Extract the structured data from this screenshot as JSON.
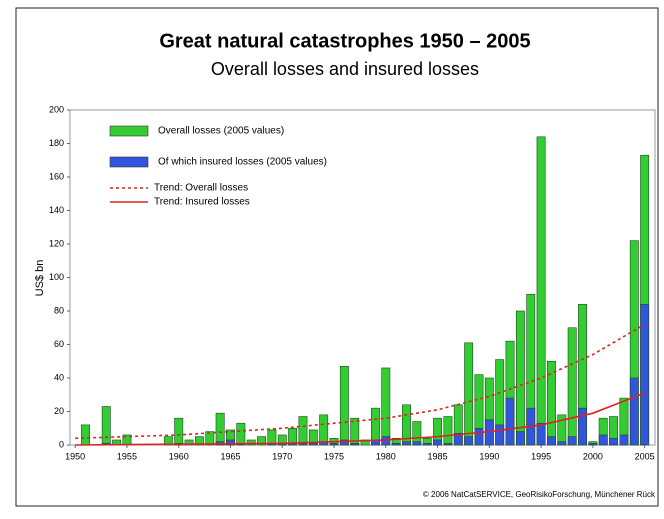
{
  "chart_data": {
    "type": "bar",
    "title": "Great natural catastrophes 1950 – 2005",
    "subtitle": "Overall losses and insured losses",
    "y_label": "US$ bn",
    "source": "© 2006 NatCatSERVICE, GeoRisikoForschung, Münchener Rück",
    "x": [
      1950,
      1951,
      1952,
      1953,
      1954,
      1955,
      1956,
      1957,
      1958,
      1959,
      1960,
      1961,
      1962,
      1963,
      1964,
      1965,
      1966,
      1967,
      1968,
      1969,
      1970,
      1971,
      1972,
      1973,
      1974,
      1975,
      1976,
      1977,
      1978,
      1979,
      1980,
      1981,
      1982,
      1983,
      1984,
      1985,
      1986,
      1987,
      1988,
      1989,
      1990,
      1991,
      1992,
      1993,
      1994,
      1995,
      1996,
      1997,
      1998,
      1999,
      2000,
      2001,
      2002,
      2003,
      2004,
      2005
    ],
    "xlim": [
      1949.5,
      2006
    ],
    "xticks": [
      1950,
      1955,
      1960,
      1965,
      1970,
      1975,
      1980,
      1985,
      1990,
      1995,
      2000,
      2005
    ],
    "ylim": [
      0,
      200
    ],
    "yticks": [
      0,
      20,
      40,
      60,
      80,
      100,
      120,
      140,
      160,
      180,
      200
    ],
    "series": [
      {
        "name": "Overall losses (2005 values)",
        "color": "#33cc33",
        "values": [
          0,
          12,
          0,
          23,
          3,
          6,
          0,
          0,
          0,
          5,
          16,
          3,
          5,
          8,
          19,
          9,
          13,
          3,
          5,
          9,
          6,
          10,
          17,
          9,
          18,
          4,
          47,
          16,
          3,
          22,
          46,
          4,
          24,
          14,
          4,
          16,
          17,
          24,
          61,
          42,
          40,
          51,
          62,
          80,
          90,
          184,
          50,
          18,
          70,
          84,
          2,
          16,
          17,
          28,
          122,
          173
        ]
      },
      {
        "name": "Of which insured losses (2005 values)",
        "color": "#3355dd",
        "values": [
          0,
          0,
          0,
          1,
          0,
          0,
          0,
          0,
          0,
          0,
          1,
          0,
          0,
          0,
          2,
          3,
          1,
          0,
          0,
          1,
          1,
          1,
          1,
          1,
          2,
          1,
          3,
          1,
          0,
          3,
          5,
          1,
          2,
          2,
          1,
          3,
          1,
          7,
          5,
          10,
          15,
          12,
          28,
          8,
          22,
          13,
          5,
          2,
          5,
          22,
          1,
          6,
          4,
          6,
          40,
          84
        ]
      },
      {
        "name": "Trend: Overall losses",
        "type": "line",
        "dash": true,
        "color": "#dd2222",
        "x": [
          1950,
          1955,
          1960,
          1965,
          1970,
          1975,
          1980,
          1985,
          1990,
          1995,
          2000,
          2005
        ],
        "values": [
          4,
          5,
          6,
          8,
          10,
          13,
          16,
          21,
          29,
          40,
          54,
          72
        ]
      },
      {
        "name": "Trend: Insured losses",
        "type": "line",
        "dash": false,
        "color": "#dd2222",
        "x": [
          1950,
          1960,
          1970,
          1975,
          1980,
          1985,
          1990,
          1995,
          2000,
          2005
        ],
        "values": [
          0,
          0.5,
          1,
          2,
          3,
          5,
          8,
          12,
          19,
          31
        ]
      }
    ]
  }
}
